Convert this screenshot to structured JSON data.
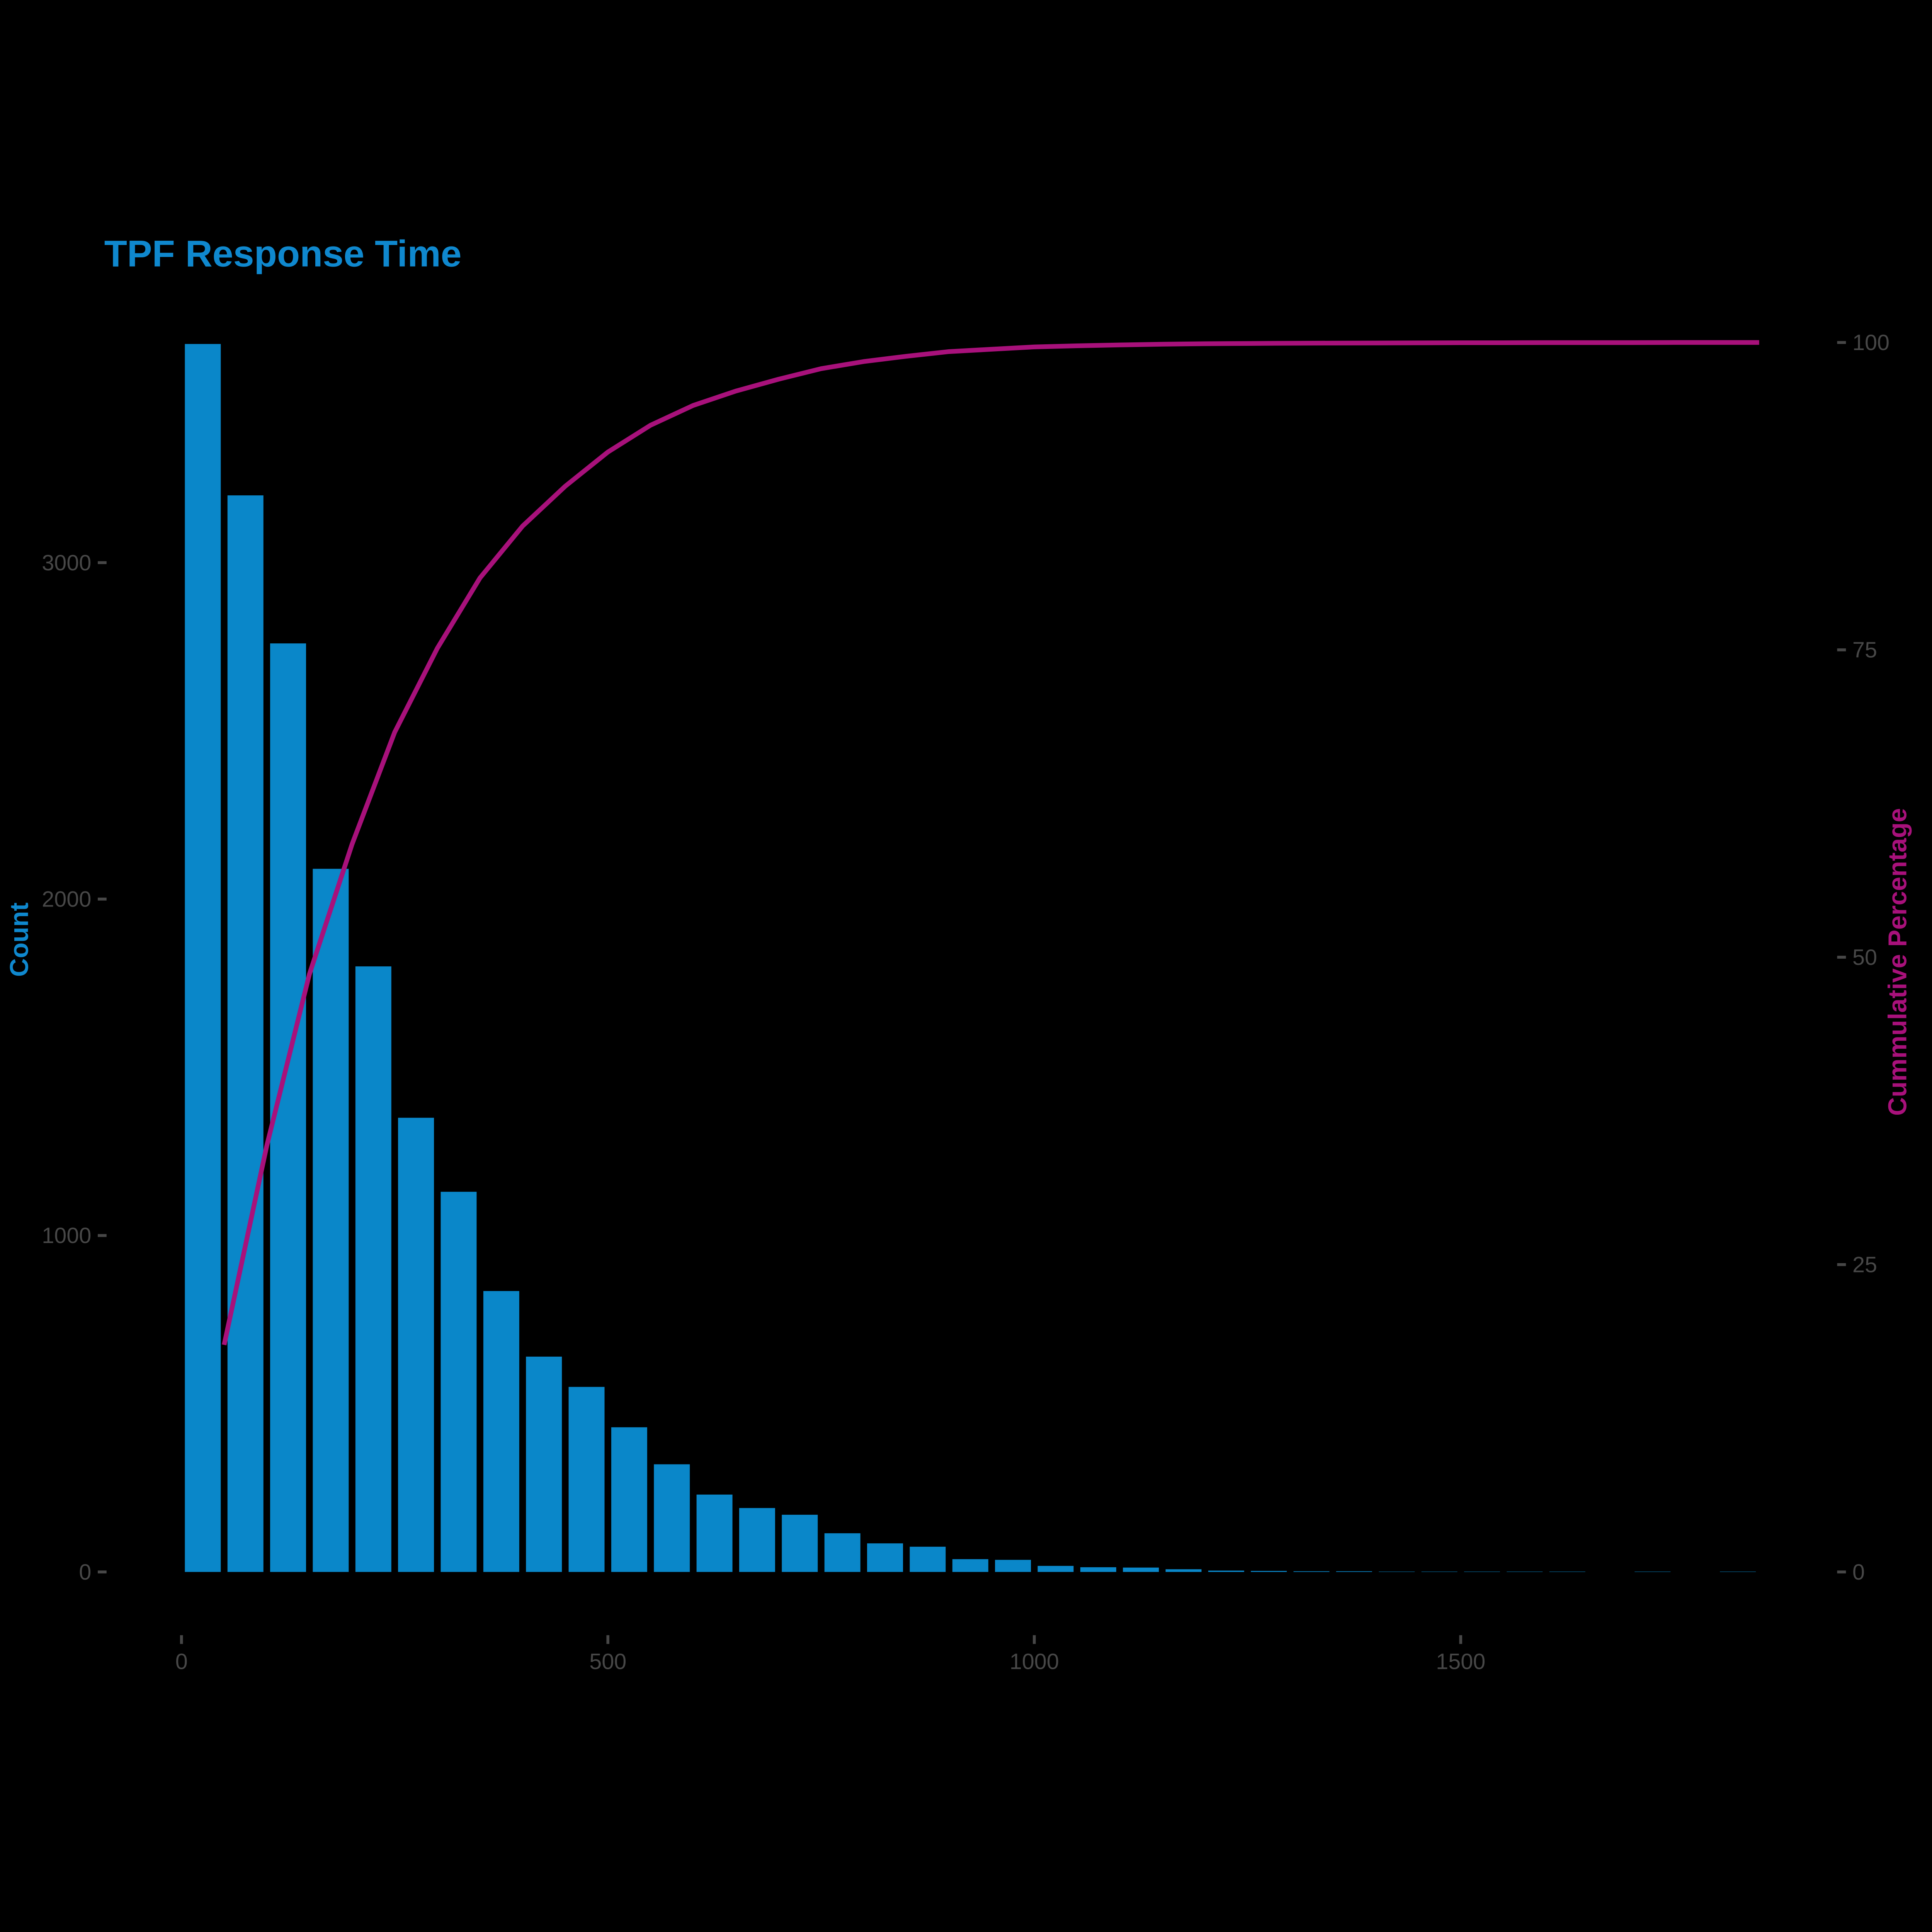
{
  "chart_data": {
    "type": "bar",
    "subtype": "pareto-histogram-with-cumulative-line",
    "title": "TPF Response Time",
    "xlabel": "",
    "ylabel_left": "Count",
    "ylabel_right": "Cummulative Percentage",
    "grid": false,
    "legend": "none",
    "bin_width": 50,
    "bin_centers": [
      25,
      75,
      125,
      175,
      225,
      275,
      325,
      375,
      425,
      475,
      525,
      575,
      625,
      675,
      725,
      775,
      825,
      875,
      925,
      975,
      1025,
      1075,
      1125,
      1175,
      1225,
      1275,
      1325,
      1375,
      1425,
      1475,
      1525,
      1575,
      1625,
      1675,
      1725,
      1775,
      1825
    ],
    "counts": [
      3650,
      3200,
      2760,
      2090,
      1800,
      1350,
      1130,
      835,
      640,
      550,
      430,
      320,
      230,
      190,
      170,
      115,
      85,
      75,
      38,
      36,
      18,
      14,
      13,
      8,
      4,
      3,
      2,
      2,
      1,
      1,
      1,
      1,
      1,
      0,
      1,
      0,
      1
    ],
    "cumulative_pct": [
      18.47,
      34.66,
      48.62,
      59.19,
      68.3,
      75.13,
      80.85,
      85.07,
      88.31,
      91.09,
      93.27,
      94.88,
      96.05,
      97.01,
      97.87,
      98.45,
      98.88,
      99.26,
      99.45,
      99.64,
      99.73,
      99.8,
      99.86,
      99.9,
      99.92,
      99.94,
      99.95,
      99.96,
      99.97,
      99.98,
      99.98,
      99.99,
      99.99,
      99.99,
      100.0,
      100.0,
      100.0
    ],
    "x_ticks": [
      0,
      500,
      1000,
      1500
    ],
    "y_ticks_left": [
      0,
      1000,
      2000,
      3000
    ],
    "y_ticks_right": [
      0,
      25,
      50,
      75,
      100
    ],
    "xlim": [
      -45,
      2050
    ],
    "ylim_left": [
      0,
      3690
    ],
    "ylim_right": [
      0,
      107
    ],
    "colors": {
      "background": "#000000",
      "bar": "#0a87c9",
      "line": "#a8117b",
      "title": "#0f88ce",
      "left_axis_title": "#0f88ce",
      "right_axis_title": "#a8117b",
      "tick_text": "#474747",
      "tick_mark": "#474747"
    }
  }
}
